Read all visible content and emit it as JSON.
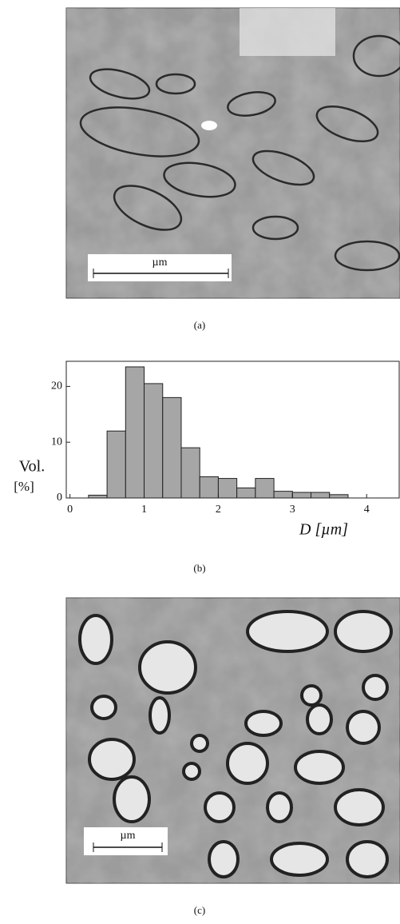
{
  "panels": [
    {
      "caption": "(a)",
      "scale_bar": "µm"
    },
    {
      "caption": "(b)"
    },
    {
      "caption": "(c)",
      "scale_bar": "µm"
    }
  ],
  "chart_data": {
    "type": "histogram",
    "y_label": [
      "Vol.",
      "[%]"
    ],
    "x_label": "D [µm]",
    "bins": [
      0.25,
      0.5,
      0.75,
      1.0,
      1.25,
      1.5,
      1.75,
      2.0,
      2.25,
      2.5,
      2.75,
      3.0,
      3.25,
      3.5,
      3.75
    ],
    "values": [
      0.5,
      12,
      23.5,
      20.5,
      18,
      9,
      3.8,
      3.5,
      1.8,
      3.5,
      1.2,
      1,
      1,
      0.6
    ],
    "color": "#a6a6a6",
    "xlim": [
      -0.05,
      4.45
    ],
    "xticks": [
      0,
      1,
      2,
      3,
      4
    ],
    "ylim": [
      0,
      24.5
    ],
    "yticks": [
      0,
      10,
      20
    ]
  }
}
